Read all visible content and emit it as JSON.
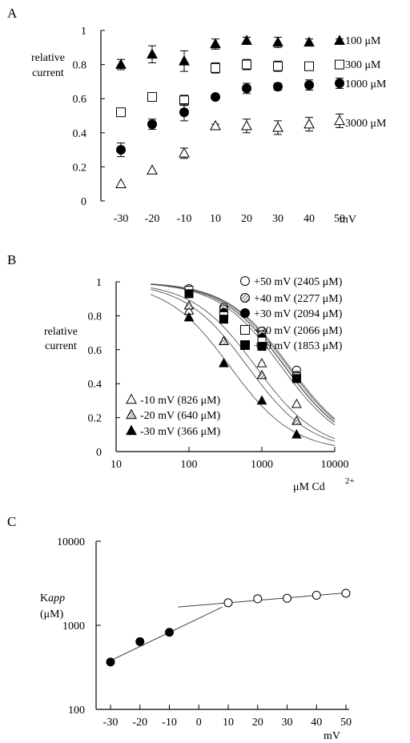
{
  "chart_data": [
    {
      "panel": "A",
      "type": "scatter",
      "x_tick_labels": [
        "-30",
        "-20",
        "-10",
        "10",
        "20",
        "30",
        "40",
        "50"
      ],
      "x_unit": "mV",
      "ylabel": [
        "relative",
        "current"
      ],
      "ylim": [
        0,
        1
      ],
      "y_ticks": [
        "0",
        "0.2",
        "0.4",
        "0.6",
        "0.8",
        "1"
      ],
      "series": [
        {
          "name": "100 μM",
          "marker": "filled-triangle",
          "x": [
            -30,
            -20,
            -10,
            10,
            20,
            30,
            40,
            50
          ],
          "values": [
            0.8,
            0.86,
            0.82,
            0.92,
            0.94,
            0.93,
            0.93,
            0.94
          ],
          "errors": [
            0.03,
            0.05,
            0.06,
            0.03,
            0.02,
            0.03,
            0.02,
            0.01
          ]
        },
        {
          "name": "300 μM",
          "marker": "open-square",
          "x": [
            -30,
            -20,
            -10,
            10,
            20,
            30,
            40,
            50
          ],
          "values": [
            0.52,
            0.61,
            0.59,
            0.78,
            0.8,
            0.79,
            0.79,
            0.8
          ],
          "errors": [
            0.01,
            0.01,
            0.03,
            0.03,
            0.03,
            0.03,
            0.02,
            0.02
          ]
        },
        {
          "name": "1000 μM",
          "marker": "filled-circle",
          "x": [
            -30,
            -20,
            -10,
            10,
            20,
            30,
            40,
            50
          ],
          "values": [
            0.3,
            0.45,
            0.52,
            0.61,
            0.66,
            0.67,
            0.68,
            0.69
          ],
          "errors": [
            0.04,
            0.03,
            0.05,
            0.01,
            0.03,
            0.02,
            0.03,
            0.03
          ]
        },
        {
          "name": "3000 μM",
          "marker": "open-triangle",
          "x": [
            -30,
            -20,
            -10,
            10,
            20,
            30,
            40,
            50
          ],
          "values": [
            0.1,
            0.18,
            0.28,
            0.44,
            0.44,
            0.43,
            0.45,
            0.47
          ],
          "errors": [
            0,
            0,
            0.03,
            0.01,
            0.04,
            0.04,
            0.04,
            0.04
          ]
        }
      ]
    },
    {
      "panel": "B",
      "type": "scatter",
      "xscale": "log",
      "xlim": [
        10,
        10000
      ],
      "x_ticks": [
        "10",
        "100",
        "1000",
        "10000"
      ],
      "xlabel": "μM Cd",
      "xlabel_sup": "2+",
      "ylabel": [
        "relative",
        "current"
      ],
      "ylim": [
        0,
        1
      ],
      "y_ticks": [
        "0",
        "0.2",
        "0.4",
        "0.6",
        "0.8",
        "1"
      ],
      "series": [
        {
          "name": "+50 mV (2405 μM)",
          "marker": "open-circle",
          "x": [
            100,
            300,
            1000,
            3000
          ],
          "values": [
            0.96,
            0.85,
            0.71,
            0.48
          ],
          "k": 2405
        },
        {
          "name": "+40 mV (2277 μM)",
          "marker": "hatched-circle",
          "x": [
            100,
            300,
            1000,
            3000
          ],
          "values": [
            0.95,
            0.84,
            0.69,
            0.45
          ],
          "k": 2277
        },
        {
          "name": "+30 mV (2094 μM)",
          "marker": "filled-circle",
          "x": [
            100,
            300,
            1000,
            3000
          ],
          "values": [
            0.94,
            0.82,
            0.67,
            0.44
          ],
          "k": 2094
        },
        {
          "name": "+20 mV (2066 μM)",
          "marker": "open-square",
          "x": [
            100,
            300,
            1000,
            3000
          ],
          "values": [
            0.95,
            0.8,
            0.65,
            0.44
          ],
          "k": 2066
        },
        {
          "name": "+10 mV (1853 μM)",
          "marker": "filled-square",
          "x": [
            100,
            300,
            1000,
            3000
          ],
          "values": [
            0.93,
            0.78,
            0.62,
            0.43
          ],
          "k": 1853
        },
        {
          "name": "-10 mV (826 μM)",
          "marker": "open-triangle",
          "x": [
            100,
            300,
            1000,
            3000
          ],
          "values": [
            0.83,
            0.65,
            0.52,
            0.28
          ],
          "k": 826
        },
        {
          "name": "-20 mV (640 μM)",
          "marker": "hatched-triangle",
          "x": [
            100,
            300,
            1000,
            3000
          ],
          "values": [
            0.86,
            0.65,
            0.45,
            0.18
          ],
          "k": 640
        },
        {
          "name": "-30 mV (366 μM)",
          "marker": "filled-triangle",
          "x": [
            100,
            300,
            1000,
            3000
          ],
          "values": [
            0.79,
            0.52,
            0.3,
            0.1
          ],
          "k": 366
        }
      ]
    },
    {
      "panel": "C",
      "type": "scatter",
      "yscale": "log",
      "ylim": [
        100,
        10000
      ],
      "y_ticks": [
        "10000",
        "1000",
        "100"
      ],
      "ylabel": [
        "K",
        "app",
        "(μM)"
      ],
      "x_ticks": [
        "-30",
        "-20",
        "-10",
        "0",
        "10",
        "20",
        "30",
        "40",
        "50"
      ],
      "xlim": [
        -30,
        50
      ],
      "x_unit": "mV",
      "series": [
        {
          "marker": "filled-circle",
          "x": [
            -30,
            -20,
            -10
          ],
          "values": [
            366,
            640,
            826
          ]
        },
        {
          "marker": "open-circle",
          "x": [
            10,
            20,
            30,
            40,
            50
          ],
          "values": [
            1853,
            2066,
            2094,
            2277,
            2405
          ]
        }
      ],
      "fit_lines": [
        {
          "x": [
            -30,
            8
          ],
          "values": [
            380,
            1650
          ]
        },
        {
          "x": [
            -7,
            50
          ],
          "values": [
            1650,
            2430
          ]
        }
      ]
    }
  ]
}
